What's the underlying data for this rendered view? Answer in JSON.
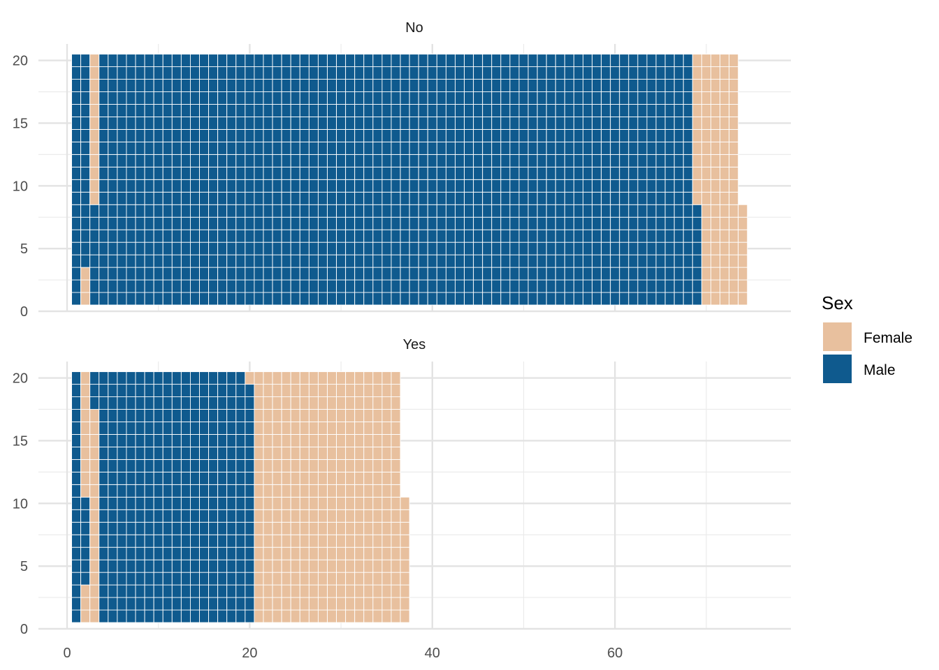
{
  "chart_data": {
    "type": "waffle",
    "facet_variable": "",
    "fill_variable": "Sex",
    "column_height": 20,
    "x_ticks": [
      "0",
      "20",
      "40",
      "60"
    ],
    "y_ticks": [
      "0",
      "5",
      "10",
      "15",
      "20"
    ],
    "xlim": [
      0,
      75
    ],
    "ylim": [
      0,
      21
    ],
    "grid": true,
    "legend": {
      "title": "Sex",
      "position": "right",
      "entries": [
        {
          "name": "Female",
          "color": "#e8c09e"
        },
        {
          "name": "Male",
          "color": "#0f5a8e"
        }
      ]
    },
    "panels": [
      {
        "label": "No",
        "runs": [
          {
            "sex": "Male",
            "count": 20
          },
          {
            "sex": "Female",
            "count": 3
          },
          {
            "sex": "Male",
            "count": 25
          },
          {
            "sex": "Female",
            "count": 12
          },
          {
            "sex": "Male",
            "count": 1308
          },
          {
            "sex": "Female",
            "count": 100
          }
        ]
      },
      {
        "label": "Yes",
        "runs": [
          {
            "sex": "Male",
            "count": 20
          },
          {
            "sex": "Female",
            "count": 3
          },
          {
            "sex": "Male",
            "count": 7
          },
          {
            "sex": "Female",
            "count": 27
          },
          {
            "sex": "Male",
            "count": 342
          },
          {
            "sex": "Female",
            "count": 331
          }
        ]
      }
    ]
  }
}
